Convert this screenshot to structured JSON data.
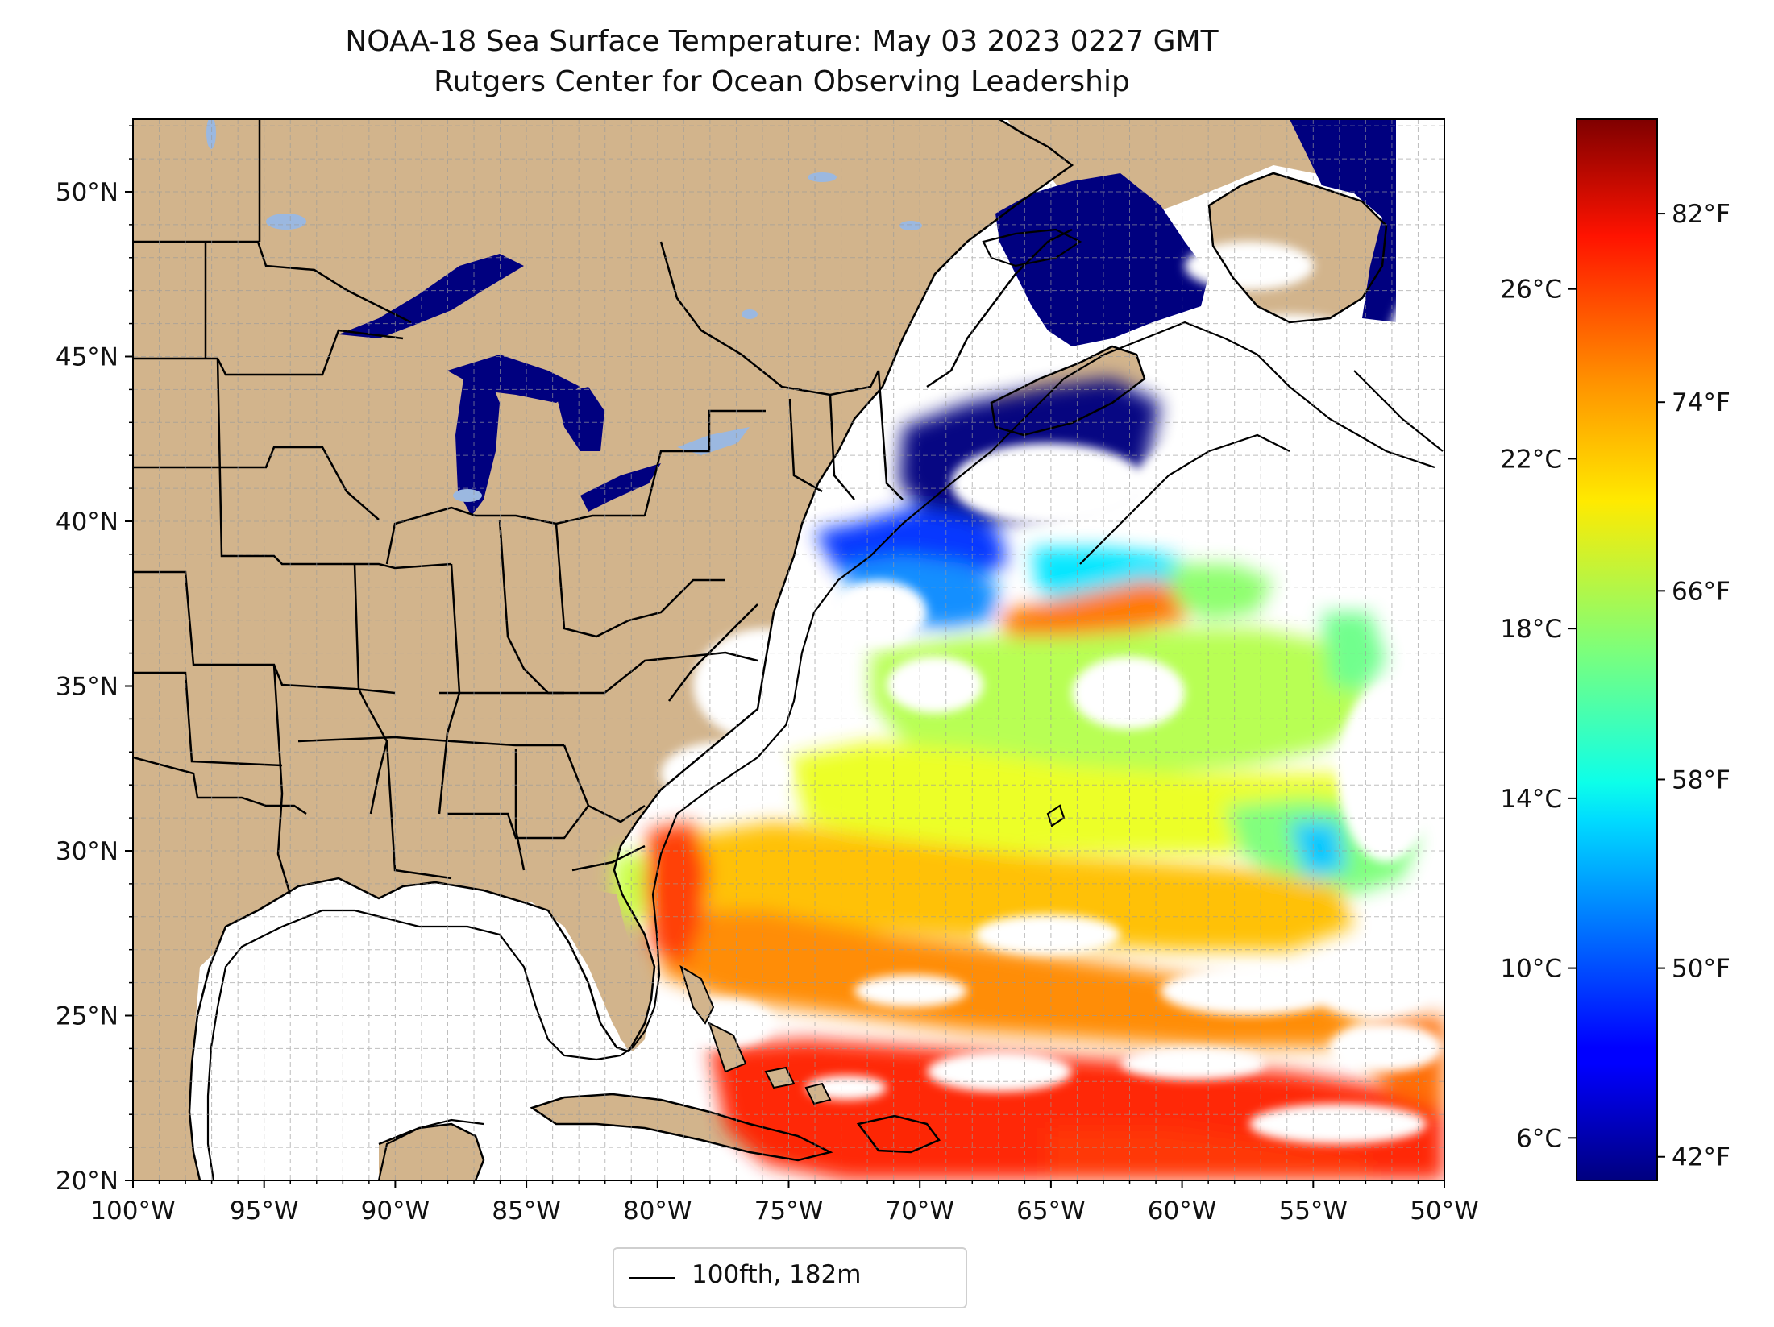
{
  "title": "NOAA-18 Sea Surface Temperature: May 03 2023 0227 GMT",
  "subtitle": "Rutgers Center for Ocean Observing Leadership",
  "map": {
    "lon_range": [
      -100,
      -50
    ],
    "lat_range": [
      20,
      52.2
    ],
    "lon_ticks": [
      "100°W",
      "95°W",
      "90°W",
      "85°W",
      "80°W",
      "75°W",
      "70°W",
      "65°W",
      "60°W",
      "55°W",
      "50°W"
    ],
    "lat_ticks": [
      "20°N",
      "25°N",
      "30°N",
      "35°N",
      "40°N",
      "45°N",
      "50°N"
    ],
    "land_color": "#d2b48c",
    "lake_color": "#9bb8e0",
    "gridlines": true
  },
  "colorbar": {
    "colormap": "jet",
    "celsius_ticks": [
      "6°C",
      "10°C",
      "14°C",
      "18°C",
      "22°C",
      "26°C"
    ],
    "fahrenheit_ticks": [
      "42°F",
      "50°F",
      "58°F",
      "66°F",
      "74°F",
      "82°F"
    ],
    "range_celsius": [
      5,
      30
    ]
  },
  "legend": {
    "entries": [
      {
        "label": "100fth, 182m",
        "color": "#000000"
      }
    ]
  }
}
